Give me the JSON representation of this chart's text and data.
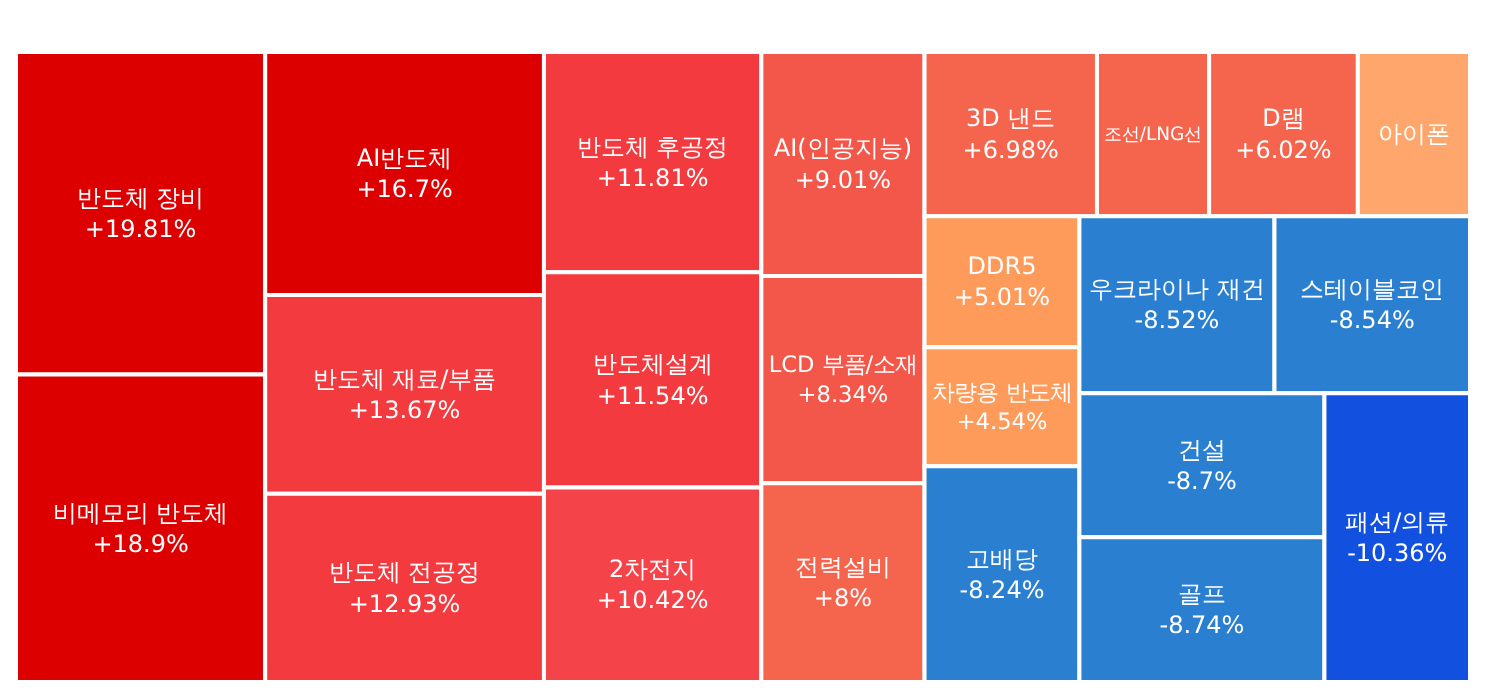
{
  "chart_data": {
    "type": "other",
    "categories": [
      "반도체 장비",
      "비메모리 반도체",
      "AI반도체",
      "반도체 재료/부품",
      "반도체 전공정",
      "반도체 후공정",
      "반도체설계",
      "2차전지",
      "AI(인공지능)",
      "LCD 부품/소재",
      "전력설비",
      "3D 낸드",
      "조선/LNG선",
      "D램",
      "아이폰",
      "DDR5",
      "차량용 반도체",
      "고배당",
      "우크라이나 재건",
      "스테이블코인",
      "건설",
      "골프",
      "패션/의류"
    ],
    "values": [
      19.81,
      18.9,
      16.7,
      13.67,
      12.93,
      11.81,
      11.54,
      10.42,
      9.01,
      8.34,
      8,
      6.98,
      null,
      6.02,
      null,
      5.01,
      4.54,
      -8.24,
      -8.52,
      -8.54,
      -8.7,
      -8.74,
      -10.36
    ],
    "value_labels": [
      "+19.81%",
      "+18.9%",
      "+16.7%",
      "+13.67%",
      "+12.93%",
      "+11.81%",
      "+11.54%",
      "+10.42%",
      "+9.01%",
      "+8.34%",
      "+8%",
      "+6.98%",
      null,
      "+6.02%",
      null,
      "+5.01%",
      "+4.54%",
      "-8.24%",
      "-8.52%",
      "-8.54%",
      "-8.7%",
      "-8.74%",
      "-10.36%"
    ],
    "colors": [
      "#dd0000",
      "#dd0000",
      "#dd0000",
      "#f23a3f",
      "#f23a3f",
      "#f23a3f",
      "#f23a3f",
      "#f5434a",
      "#f2574a",
      "#f2574a",
      "#f5654e",
      "#f5654e",
      "#f5654e",
      "#f5654e",
      "#ffa66c",
      "#ff9b5a",
      "#ff9b5a",
      "#2a7fd0",
      "#2a7fd0",
      "#2a7fd0",
      "#2a7fd0",
      "#2a7fd0",
      "#1251e0"
    ]
  }
}
